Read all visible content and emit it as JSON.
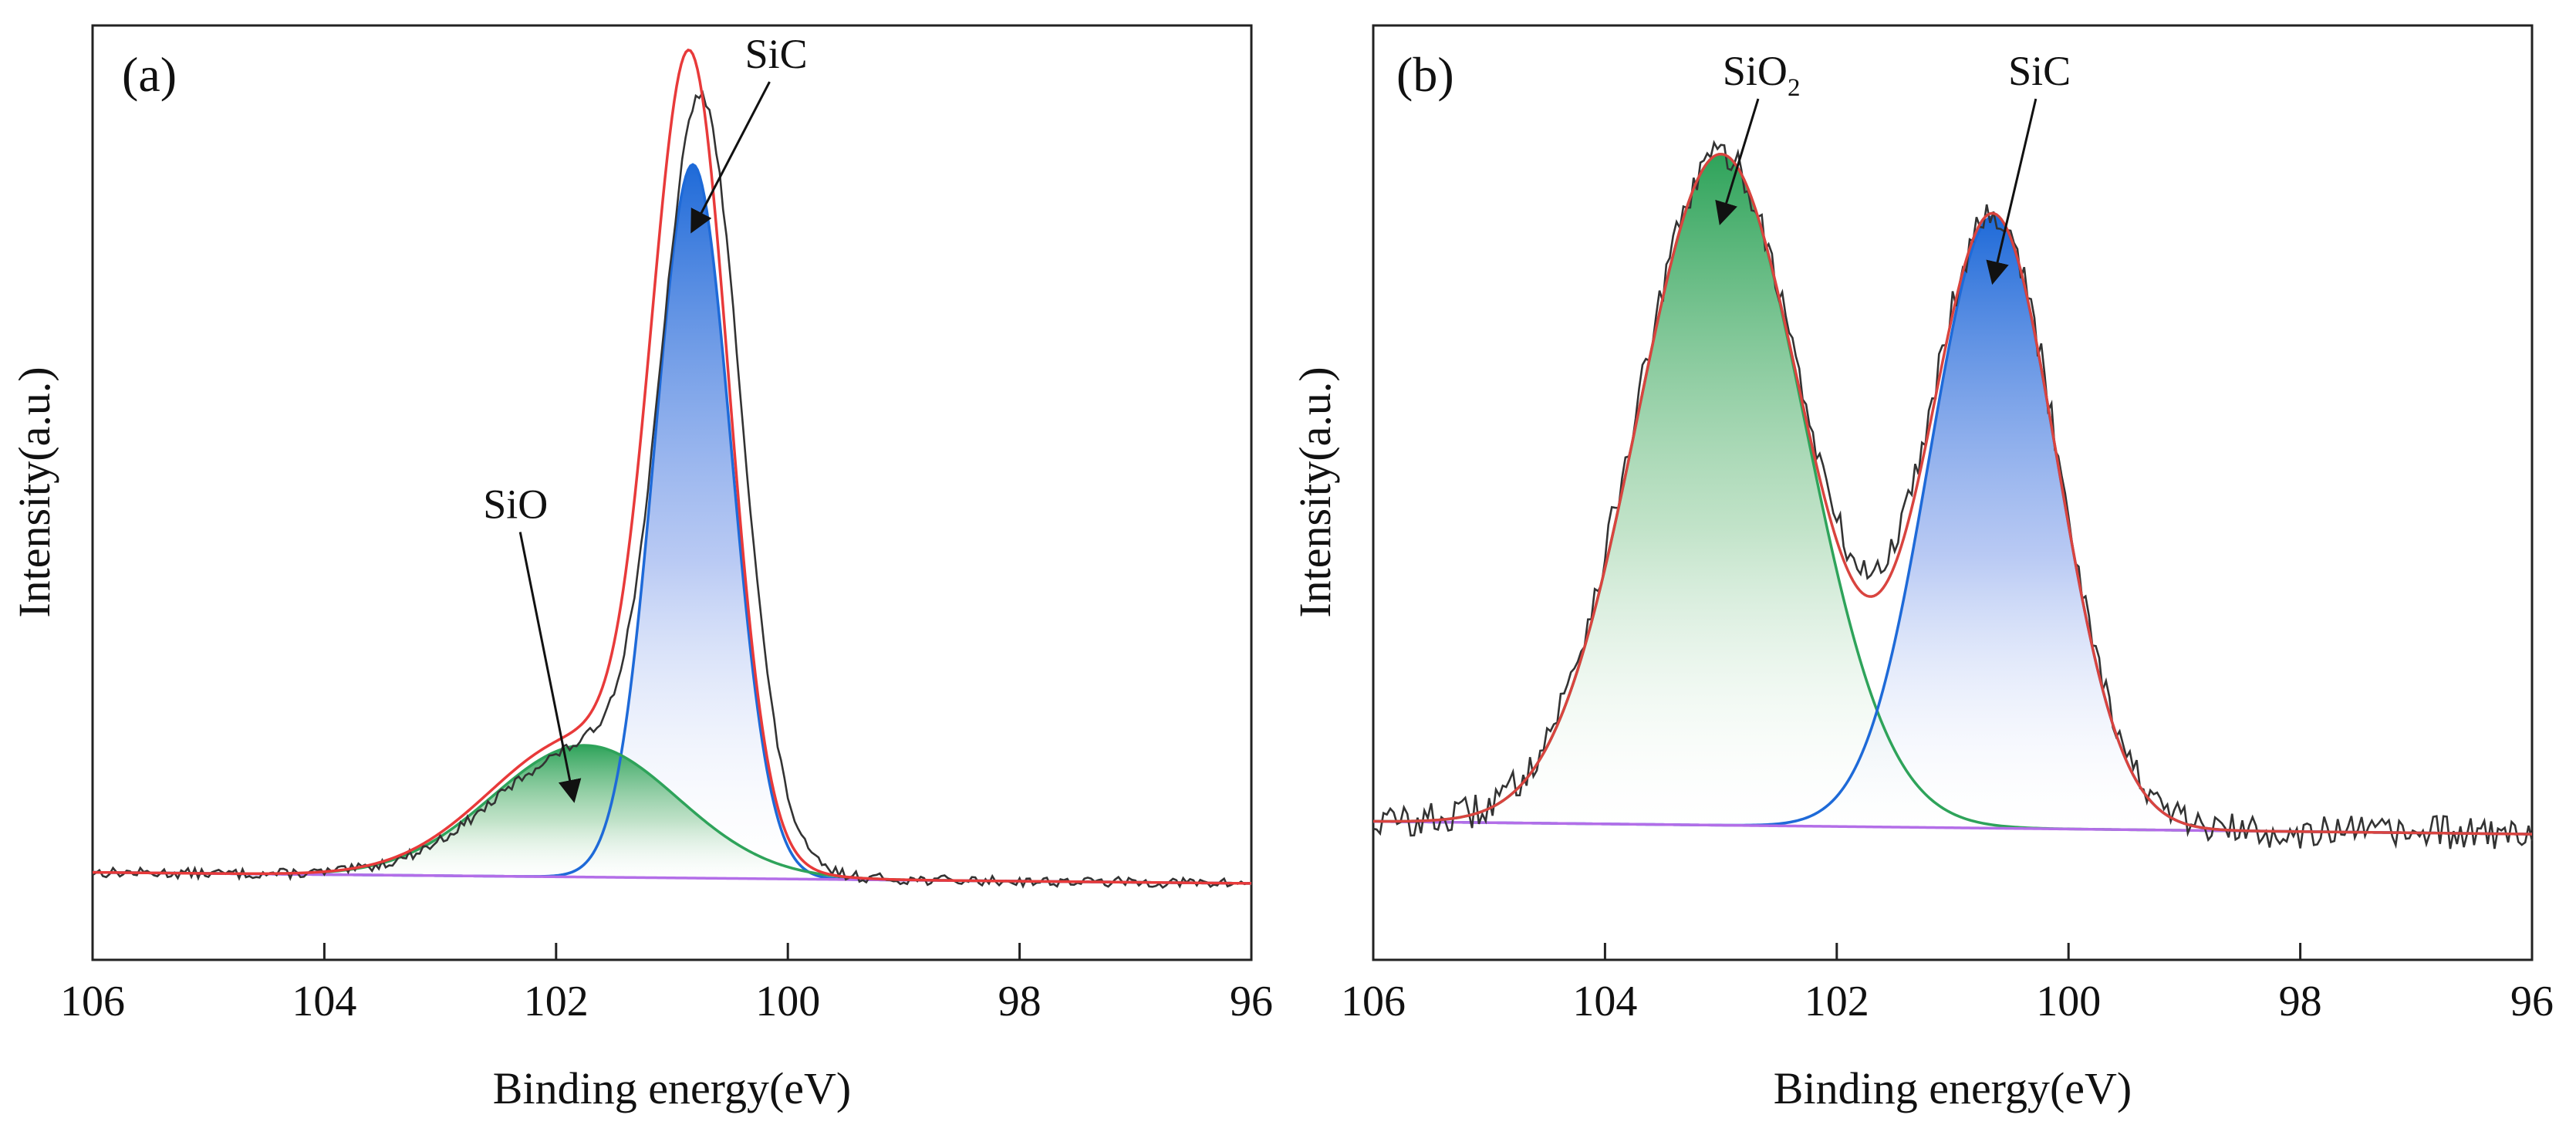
{
  "chart_data": [
    {
      "type": "line",
      "panel_label": "(a)",
      "title": "",
      "xlabel": "Binding energy(eV)",
      "ylabel": "Intensity(a.u.)",
      "xlim": [
        106,
        96
      ],
      "ylim": [
        0,
        1.1
      ],
      "x_reversed": true,
      "x_ticks": [
        106,
        104,
        102,
        100,
        98,
        96
      ],
      "x_tick_labels": [
        "106",
        "104",
        "102",
        "100",
        "98",
        "96"
      ],
      "grid": false,
      "baseline": {
        "name": "Background",
        "color": "#b36ee8",
        "at_106": 0.103,
        "at_96": 0.09
      },
      "components": [
        {
          "name": "SiC",
          "center": 100.82,
          "height": 0.84,
          "sigma": 0.33,
          "color": "#1e6ad8",
          "fill": "#1e6ad8"
        },
        {
          "name": "SiO",
          "center": 101.75,
          "height": 0.155,
          "sigma": 0.8,
          "color": "#2ea35a",
          "fill": "#2ea35a"
        }
      ],
      "envelope": {
        "name": "Fitted envelope",
        "color": "#e83a3a",
        "center_shift": 0.02,
        "scale": 1.06
      },
      "raw_data": {
        "name": "Raw data",
        "color": "#333333",
        "noise": 0.006,
        "peak_shift": -0.08
      },
      "annotations": [
        {
          "text": "SiC",
          "label_x": 100.1,
          "label_y": 1.05,
          "arrow_to_x": 100.82,
          "arrow_to_y": 0.86
        },
        {
          "text": "SiO",
          "label_x": 102.35,
          "label_y": 0.52,
          "arrow_to_x": 101.85,
          "arrow_to_y": 0.19
        }
      ]
    },
    {
      "type": "line",
      "panel_label": "(b)",
      "title": "",
      "xlabel": "Binding energy(eV)",
      "ylabel": "Intensity(a.u.)",
      "xlim": [
        106,
        96
      ],
      "ylim": [
        0,
        1.1
      ],
      "x_reversed": true,
      "x_ticks": [
        106,
        104,
        102,
        100,
        98,
        96
      ],
      "x_tick_labels": [
        "106",
        "104",
        "102",
        "100",
        "98",
        "96"
      ],
      "grid": false,
      "baseline": {
        "name": "Background",
        "color": "#b36ee8",
        "at_106": 0.163,
        "at_96": 0.148
      },
      "components": [
        {
          "name": "SiO2",
          "center": 103.0,
          "height": 0.79,
          "sigma": 0.72,
          "color": "#2ea35a",
          "fill": "#2ea35a"
        },
        {
          "name": "SiC",
          "center": 100.65,
          "height": 0.72,
          "sigma": 0.55,
          "color": "#1e6ad8",
          "fill": "#1e6ad8"
        }
      ],
      "envelope": {
        "name": "Fitted envelope",
        "color": "#d9443f",
        "center_shift": 0.0,
        "scale": 1.0
      },
      "raw_data": {
        "name": "Raw data",
        "color": "#333333",
        "noise": 0.02,
        "peak_shift": 0.0
      },
      "annotations": [
        {
          "text": "SiO",
          "subscript": "2",
          "label_x": 102.65,
          "label_y": 1.03,
          "arrow_to_x": 103.0,
          "arrow_to_y": 0.87
        },
        {
          "text": "SiC",
          "label_x": 100.25,
          "label_y": 1.03,
          "arrow_to_x": 100.65,
          "arrow_to_y": 0.8
        }
      ]
    }
  ]
}
